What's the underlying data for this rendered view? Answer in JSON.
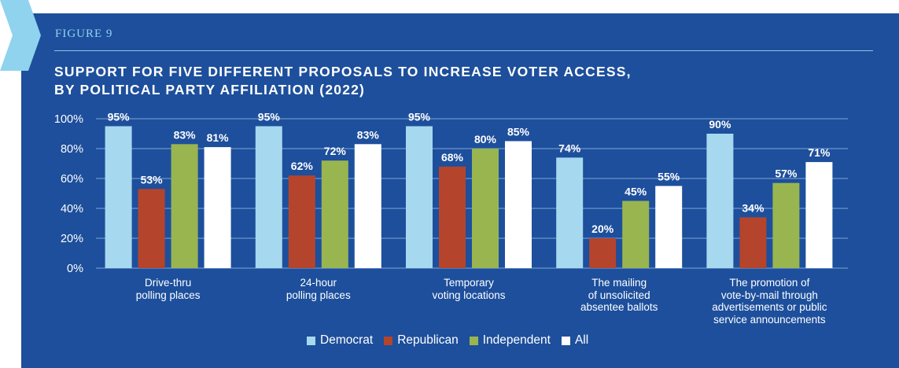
{
  "header": {
    "figure_label": "FIGURE 9",
    "title_line1": "SUPPORT FOR FIVE DIFFERENT PROPOSALS TO INCREASE VOTER ACCESS,",
    "title_line2": "BY POLITICAL PARTY AFFILIATION (2022)"
  },
  "colors": {
    "background": "#1d4f9c",
    "chevron": "#8fd3ee",
    "Democrat": "#a6d9ef",
    "Republican": "#b5442c",
    "Independent": "#99b550",
    "All": "#ffffff"
  },
  "chart_data": {
    "type": "bar",
    "title": "SUPPORT FOR FIVE DIFFERENT PROPOSALS TO INCREASE VOTER ACCESS, BY POLITICAL PARTY AFFILIATION (2022)",
    "categories": [
      "Drive-thru\npolling places",
      "24-hour\npolling places",
      "Temporary\nvoting locations",
      "The mailing\nof unsolicited\nabsentee ballots",
      "The promotion of\nvote-by-mail through\nadvertisements or public\nservice announcements"
    ],
    "series": [
      {
        "name": "Democrat",
        "values": [
          95,
          95,
          95,
          74,
          90
        ]
      },
      {
        "name": "Republican",
        "values": [
          53,
          62,
          68,
          20,
          34
        ]
      },
      {
        "name": "Independent",
        "values": [
          83,
          72,
          80,
          45,
          57
        ]
      },
      {
        "name": "All",
        "values": [
          81,
          83,
          85,
          55,
          71
        ]
      }
    ],
    "ylim": [
      0,
      100
    ],
    "yticks": [
      "0%",
      "20%",
      "40%",
      "60%",
      "80%",
      "100%"
    ],
    "value_suffix": "%",
    "xlabel": "",
    "ylabel": "",
    "grid": true,
    "legend_position": "bottom-center"
  }
}
